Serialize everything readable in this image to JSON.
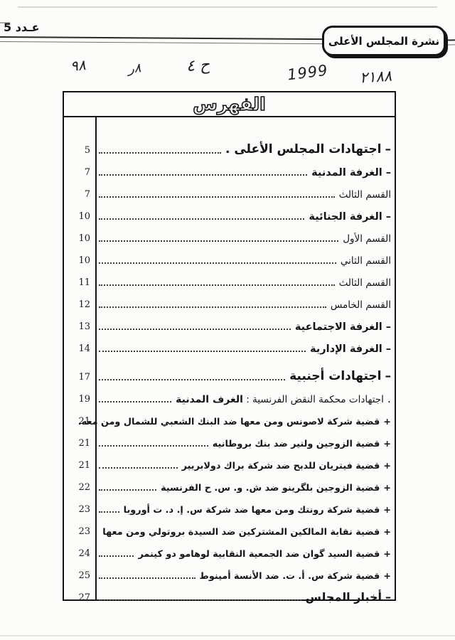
{
  "colors": {
    "ink": "#161616",
    "paper": "#fcfcfa"
  },
  "header": {
    "issue_label": "عـدد 5",
    "bulletin_title": "نشرة المجلس الأعلى",
    "handwritten_marks": [
      {
        "text": "٩٨"
      },
      {
        "text": "٨ر"
      },
      {
        "text": "ح ٤"
      },
      {
        "text": "1999"
      },
      {
        "text": "٢١٨٨"
      }
    ]
  },
  "toc": {
    "title": "الفهرس",
    "entries": [
      {
        "page": "5",
        "prefix": "–",
        "text": "اجتهادات المجلس الأعلى .",
        "style": "main"
      },
      {
        "page": "7",
        "prefix": "–",
        "text": "الغرفة المدنية",
        "style": "section"
      },
      {
        "page": "7",
        "prefix": "",
        "text": "القسم الثالث",
        "style": "sub"
      },
      {
        "page": "10",
        "prefix": "–",
        "text": "الغرفة الجنائية",
        "style": "section"
      },
      {
        "page": "10",
        "prefix": "",
        "text": "القسم الأول",
        "style": "sub"
      },
      {
        "page": "10",
        "prefix": "",
        "text": "القسم الثاني",
        "style": "sub"
      },
      {
        "page": "11",
        "prefix": "",
        "text": "القسم الثالث",
        "style": "sub"
      },
      {
        "page": "12",
        "prefix": "",
        "text": "القسم الخامس",
        "style": "sub"
      },
      {
        "page": "13",
        "prefix": "–",
        "text": "الغرفة الاجتماعية",
        "style": "section"
      },
      {
        "page": "14",
        "prefix": "–",
        "text": "الغرفة الإدارية",
        "style": "section"
      },
      {
        "page": "17",
        "prefix": "–",
        "text": "اجتهادات أجنبية",
        "style": "main"
      },
      {
        "page": "19",
        "prefix": ".",
        "text": "اجتهادات محكمة النقض الفرنسية : ",
        "text_bold": "الغرف المدنية",
        "style": "mixed"
      },
      {
        "page": "21",
        "prefix": "+",
        "text": "قضية شركة لاصونس ومن معها ضد البنك الشعبي للشمال ومن معه.",
        "style": "case"
      },
      {
        "page": "21",
        "prefix": "+",
        "text": "قضية الزوجين ولتير ضد بنك بروطانيه",
        "style": "case"
      },
      {
        "page": "21",
        "prefix": "+",
        "text": "قضية فيتريان للدبح ضد شركة براك دولابريير",
        "style": "case"
      },
      {
        "page": "22",
        "prefix": "+",
        "text": "قضية الزوجين بلگرينو ضد ش. و. س. ح الفرنسية",
        "style": "case"
      },
      {
        "page": "23",
        "prefix": "+",
        "text": "قضية شركة رونتك ومن معها ضد شركة س. إ. د. ت أوروبا",
        "style": "case"
      },
      {
        "page": "23",
        "prefix": "+",
        "text": "قضية نقابة المالكين المشتركين ضد السيدة بروتولي ومن معها",
        "style": "case"
      },
      {
        "page": "24",
        "prefix": "+",
        "text": "قضية السيد گوان ضد الجمعية النقابية لوهامو دو كينمر",
        "style": "case"
      },
      {
        "page": "25",
        "prefix": "+",
        "text": "قضية شركة س. أ. ت. ضد الأنسة أمينوط",
        "style": "case"
      },
      {
        "page": "27",
        "prefix": "–",
        "text": "أخبار المجلس",
        "style": "news"
      }
    ]
  }
}
